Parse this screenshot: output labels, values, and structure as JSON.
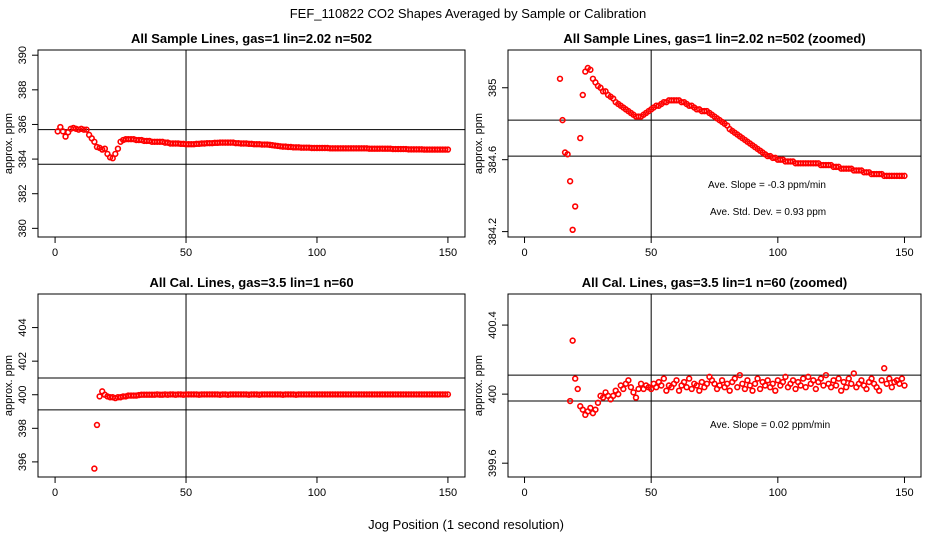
{
  "page": {
    "title": "FEF_110822  CO2 Shapes Averaged by Sample or Calibration",
    "xlabel": "Jog Position (1 second resolution)"
  },
  "colors": {
    "points": "#ff0000",
    "lines": "#000000",
    "background": "#ffffff"
  },
  "chart_data": [
    {
      "type": "scatter",
      "title": "All Sample Lines, gas=1 lin=2.02 n=502",
      "ylabel": "approx. ppm",
      "xlim": [
        0,
        150
      ],
      "ylim": [
        379.5,
        390.3
      ],
      "xticks": [
        0,
        50,
        100,
        150
      ],
      "yticks": [
        380,
        382,
        384,
        386,
        388,
        390
      ],
      "hlines": [
        385.7,
        383.7
      ],
      "vlines": [
        50
      ],
      "notes": [],
      "x": [
        1,
        2,
        3,
        4,
        5,
        6,
        7,
        8,
        9,
        10,
        11,
        12,
        13,
        14,
        15,
        16,
        17,
        18,
        19,
        20,
        21,
        22,
        23,
        24,
        25,
        26,
        27,
        28,
        29,
        30,
        31,
        32,
        33,
        34,
        35,
        36,
        37,
        38,
        39,
        40,
        41,
        42,
        43,
        44,
        45,
        46,
        47,
        48,
        49,
        50,
        51,
        52,
        53,
        54,
        55,
        56,
        57,
        58,
        59,
        60,
        61,
        62,
        63,
        64,
        65,
        66,
        67,
        68,
        69,
        70,
        71,
        72,
        73,
        74,
        75,
        76,
        77,
        78,
        79,
        80,
        81,
        82,
        83,
        84,
        85,
        86,
        87,
        88,
        89,
        90,
        91,
        92,
        93,
        94,
        95,
        96,
        97,
        98,
        99,
        100,
        101,
        102,
        103,
        104,
        105,
        106,
        107,
        108,
        109,
        110,
        111,
        112,
        113,
        114,
        115,
        116,
        117,
        118,
        119,
        120,
        121,
        122,
        123,
        124,
        125,
        126,
        127,
        128,
        129,
        130,
        131,
        132,
        133,
        134,
        135,
        136,
        137,
        138,
        139,
        140,
        141,
        142,
        143,
        144,
        145,
        146,
        147,
        148,
        149,
        150
      ],
      "y": [
        385.6,
        385.85,
        385.6,
        385.3,
        385.55,
        385.75,
        385.8,
        385.75,
        385.7,
        385.75,
        385.7,
        385.7,
        385.4,
        385.2,
        385.0,
        384.7,
        384.65,
        384.55,
        384.6,
        384.3,
        384.1,
        384.05,
        384.3,
        384.6,
        385.0,
        385.1,
        385.15,
        385.15,
        385.15,
        385.15,
        385.1,
        385.1,
        385.1,
        385.05,
        385.05,
        385.05,
        385.0,
        385.0,
        385.0,
        385.0,
        385.0,
        384.95,
        384.95,
        384.9,
        384.9,
        384.9,
        384.9,
        384.88,
        384.88,
        384.86,
        384.86,
        384.86,
        384.86,
        384.88,
        384.88,
        384.9,
        384.9,
        384.92,
        384.92,
        384.92,
        384.94,
        384.94,
        384.95,
        384.95,
        384.95,
        384.95,
        384.95,
        384.95,
        384.92,
        384.92,
        384.9,
        384.9,
        384.9,
        384.88,
        384.88,
        384.86,
        384.86,
        384.86,
        384.84,
        384.84,
        384.84,
        384.82,
        384.8,
        384.78,
        384.76,
        384.74,
        384.72,
        384.72,
        384.7,
        384.7,
        384.68,
        384.68,
        384.68,
        384.66,
        384.66,
        384.66,
        384.66,
        384.64,
        384.64,
        384.64,
        384.64,
        384.64,
        384.64,
        384.64,
        384.62,
        384.62,
        384.62,
        384.62,
        384.62,
        384.62,
        384.62,
        384.62,
        384.62,
        384.62,
        384.62,
        384.62,
        384.62,
        384.62,
        384.62,
        384.6,
        384.6,
        384.6,
        384.6,
        384.6,
        384.6,
        384.6,
        384.6,
        384.6,
        384.58,
        384.58,
        384.58,
        384.58,
        384.58,
        384.58,
        384.56,
        384.56,
        384.56,
        384.56,
        384.56,
        384.56,
        384.55,
        384.55,
        384.55,
        384.55,
        384.55,
        384.55,
        384.55,
        384.55,
        384.55,
        384.55
      ]
    },
    {
      "type": "scatter",
      "title": "All Sample Lines, gas=1 lin=2.02 n=502 (zoomed)",
      "ylabel": "approx. ppm",
      "xlim": [
        0,
        150
      ],
      "ylim": [
        384.17,
        385.21
      ],
      "xticks": [
        0,
        50,
        100,
        150
      ],
      "yticks": [
        384.2,
        384.6,
        385.0
      ],
      "hlines": [
        384.82,
        384.62
      ],
      "vlines": [
        50
      ],
      "notes": [
        "Ave. Slope =  -0.3  ppm/min",
        "Ave. Std. Dev. =  0.93  ppm"
      ],
      "x": [
        14,
        15,
        16,
        17,
        18,
        19,
        20,
        22,
        23,
        24,
        25,
        26,
        27,
        28,
        29,
        30,
        31,
        32,
        33,
        34,
        35,
        36,
        37,
        38,
        39,
        40,
        41,
        42,
        43,
        44,
        45,
        46,
        47,
        48,
        49,
        50,
        51,
        52,
        53,
        54,
        55,
        56,
        57,
        58,
        59,
        60,
        61,
        62,
        63,
        64,
        65,
        66,
        67,
        68,
        69,
        70,
        71,
        72,
        73,
        74,
        75,
        76,
        77,
        78,
        79,
        80,
        81,
        82,
        83,
        84,
        85,
        86,
        87,
        88,
        89,
        90,
        91,
        92,
        93,
        94,
        95,
        96,
        97,
        98,
        99,
        100,
        101,
        102,
        103,
        104,
        105,
        106,
        107,
        108,
        109,
        110,
        111,
        112,
        113,
        114,
        115,
        116,
        117,
        118,
        119,
        120,
        121,
        122,
        123,
        124,
        125,
        126,
        127,
        128,
        129,
        130,
        131,
        132,
        133,
        134,
        135,
        136,
        137,
        138,
        139,
        140,
        141,
        142,
        143,
        144,
        145,
        146,
        147,
        148,
        149,
        150
      ],
      "y": [
        385.05,
        384.82,
        384.64,
        384.63,
        384.48,
        384.21,
        384.34,
        384.72,
        384.96,
        385.09,
        385.11,
        385.1,
        385.05,
        385.03,
        385.01,
        385.0,
        384.98,
        384.98,
        384.96,
        384.95,
        384.94,
        384.92,
        384.91,
        384.9,
        384.89,
        384.88,
        384.87,
        384.86,
        384.85,
        384.84,
        384.84,
        384.84,
        384.85,
        384.86,
        384.87,
        384.88,
        384.89,
        384.9,
        384.9,
        384.91,
        384.92,
        384.92,
        384.93,
        384.93,
        384.93,
        384.93,
        384.93,
        384.92,
        384.92,
        384.91,
        384.9,
        384.9,
        384.89,
        384.88,
        384.88,
        384.87,
        384.87,
        384.87,
        384.86,
        384.85,
        384.84,
        384.83,
        384.82,
        384.81,
        384.8,
        384.79,
        384.77,
        384.76,
        384.75,
        384.74,
        384.73,
        384.72,
        384.71,
        384.7,
        384.69,
        384.68,
        384.67,
        384.66,
        384.65,
        384.64,
        384.63,
        384.62,
        384.62,
        384.61,
        384.61,
        384.6,
        384.6,
        384.6,
        384.59,
        384.59,
        384.59,
        384.59,
        384.58,
        384.58,
        384.58,
        384.58,
        384.58,
        384.58,
        384.58,
        384.58,
        384.58,
        384.58,
        384.57,
        384.57,
        384.57,
        384.57,
        384.57,
        384.56,
        384.56,
        384.56,
        384.55,
        384.55,
        384.55,
        384.55,
        384.55,
        384.54,
        384.54,
        384.54,
        384.54,
        384.53,
        384.53,
        384.53,
        384.52,
        384.52,
        384.52,
        384.52,
        384.52,
        384.51,
        384.51,
        384.51,
        384.51,
        384.51,
        384.51,
        384.51,
        384.51,
        384.51
      ]
    },
    {
      "type": "scatter",
      "title": "All Cal. Lines, gas=3.5 lin=1 n=60",
      "ylabel": "approx. ppm",
      "xlim": [
        0,
        150
      ],
      "ylim": [
        395.1,
        406
      ],
      "xticks": [
        0,
        50,
        100,
        150
      ],
      "yticks": [
        396,
        398,
        400,
        402,
        404
      ],
      "hlines": [
        401.0,
        399.1
      ],
      "vlines": [
        50
      ],
      "notes": [],
      "x": [
        15,
        16,
        17,
        18,
        19,
        20,
        21,
        22,
        23,
        24,
        25,
        26,
        27,
        28,
        29,
        30,
        31,
        32,
        33,
        34,
        35,
        36,
        37,
        38,
        39,
        40,
        41,
        42,
        43,
        44,
        45,
        46,
        47,
        48,
        49,
        50,
        51,
        52,
        53,
        54,
        55,
        56,
        57,
        58,
        59,
        60,
        61,
        62,
        63,
        64,
        65,
        66,
        67,
        68,
        69,
        70,
        71,
        72,
        73,
        74,
        75,
        76,
        77,
        78,
        79,
        80,
        81,
        82,
        83,
        84,
        85,
        86,
        87,
        88,
        89,
        90,
        91,
        92,
        93,
        94,
        95,
        96,
        97,
        98,
        99,
        100,
        101,
        102,
        103,
        104,
        105,
        106,
        107,
        108,
        109,
        110,
        111,
        112,
        113,
        114,
        115,
        116,
        117,
        118,
        119,
        120,
        121,
        122,
        123,
        124,
        125,
        126,
        127,
        128,
        129,
        130,
        131,
        132,
        133,
        134,
        135,
        136,
        137,
        138,
        139,
        140,
        141,
        142,
        143,
        144,
        145,
        146,
        147,
        148,
        149,
        150
      ],
      "y": [
        395.6,
        398.2,
        399.9,
        400.2,
        400.0,
        399.9,
        399.85,
        399.85,
        399.8,
        399.85,
        399.85,
        399.9,
        399.9,
        399.95,
        399.95,
        399.95,
        399.95,
        399.98,
        400.0,
        400.0,
        400.0,
        400.0,
        400.0,
        400.0,
        400.02,
        400.0,
        400.0,
        400.02,
        400.0,
        400.02,
        400.02,
        400.0,
        400.02,
        400.02,
        400.0,
        400.02,
        400.02,
        400.02,
        400.02,
        400.02,
        400.0,
        400.02,
        400.02,
        400.02,
        400.02,
        400.02,
        400.02,
        400.02,
        400.0,
        400.02,
        400.02,
        400.0,
        400.02,
        400.02,
        400.02,
        400.02,
        400.02,
        400.02,
        400.02,
        400.0,
        400.02,
        400.02,
        400.02,
        400.0,
        400.02,
        400.02,
        400.02,
        400.02,
        400.02,
        400.02,
        400.02,
        400.02,
        400.0,
        400.02,
        400.02,
        400.02,
        400.02,
        400.0,
        400.02,
        400.02,
        400.02,
        400.02,
        400.02,
        400.02,
        400.02,
        400.02,
        400.02,
        400.02,
        400.02,
        400.02,
        400.02,
        400.02,
        400.02,
        400.02,
        400.02,
        400.02,
        400.02,
        400.02,
        400.02,
        400.02,
        400.02,
        400.02,
        400.02,
        400.02,
        400.02,
        400.02,
        400.02,
        400.02,
        400.02,
        400.02,
        400.02,
        400.02,
        400.02,
        400.02,
        400.02,
        400.02,
        400.02,
        400.02,
        400.02,
        400.02,
        400.02,
        400.02,
        400.02,
        400.02,
        400.02,
        400.02,
        400.02,
        400.02,
        400.02,
        400.02,
        400.02,
        400.02,
        400.02,
        400.02,
        400.02,
        400.02
      ]
    },
    {
      "type": "scatter",
      "title": "All Cal. Lines, gas=3.5 lin=1 n=60 (zoomed)",
      "ylabel": "approx. ppm",
      "xlim": [
        0,
        150
      ],
      "ylim": [
        399.52,
        400.58
      ],
      "xticks": [
        0,
        50,
        100,
        150
      ],
      "yticks": [
        399.6,
        400.0,
        400.4
      ],
      "hlines": [
        400.11,
        399.96
      ],
      "vlines": [
        50
      ],
      "notes": [
        "Ave. Slope =  0.02  ppm/min"
      ],
      "x": [
        18,
        19,
        20,
        21,
        22,
        23,
        24,
        25,
        26,
        27,
        28,
        29,
        30,
        31,
        32,
        33,
        34,
        35,
        36,
        37,
        38,
        39,
        40,
        41,
        42,
        43,
        44,
        45,
        46,
        47,
        48,
        49,
        50,
        51,
        52,
        53,
        54,
        55,
        56,
        57,
        58,
        59,
        60,
        61,
        62,
        63,
        64,
        65,
        66,
        67,
        68,
        69,
        70,
        71,
        72,
        73,
        74,
        75,
        76,
        77,
        78,
        79,
        80,
        81,
        82,
        83,
        84,
        85,
        86,
        87,
        88,
        89,
        90,
        91,
        92,
        93,
        94,
        95,
        96,
        97,
        98,
        99,
        100,
        101,
        102,
        103,
        104,
        105,
        106,
        107,
        108,
        109,
        110,
        111,
        112,
        113,
        114,
        115,
        116,
        117,
        118,
        119,
        120,
        121,
        122,
        123,
        124,
        125,
        126,
        127,
        128,
        129,
        130,
        131,
        132,
        133,
        134,
        135,
        136,
        137,
        138,
        139,
        140,
        141,
        142,
        143,
        144,
        145,
        146,
        147,
        148,
        149,
        150
      ],
      "y": [
        399.96,
        400.31,
        400.09,
        400.03,
        399.93,
        399.91,
        399.88,
        399.9,
        399.92,
        399.89,
        399.91,
        399.95,
        399.99,
        399.98,
        400.01,
        399.99,
        399.97,
        399.99,
        400.02,
        400.0,
        400.05,
        400.03,
        400.06,
        400.08,
        400.04,
        400.01,
        399.98,
        400.03,
        400.06,
        400.03,
        400.05,
        400.04,
        400.03,
        400.06,
        400.04,
        400.07,
        400.05,
        400.09,
        400.02,
        400.05,
        400.04,
        400.06,
        400.08,
        400.02,
        400.05,
        400.07,
        400.04,
        400.09,
        400.03,
        400.06,
        400.05,
        400.02,
        400.07,
        400.04,
        400.06,
        400.1,
        400.08,
        400.06,
        400.03,
        400.05,
        400.08,
        400.04,
        400.06,
        400.02,
        400.07,
        400.09,
        400.04,
        400.11,
        400.06,
        400.03,
        400.08,
        400.05,
        400.02,
        400.06,
        400.09,
        400.03,
        400.07,
        400.05,
        400.08,
        400.04,
        400.06,
        400.02,
        400.08,
        400.05,
        400.07,
        400.1,
        400.04,
        400.06,
        400.08,
        400.03,
        400.07,
        400.05,
        400.09,
        400.04,
        400.1,
        400.06,
        400.08,
        400.03,
        400.07,
        400.09,
        400.05,
        400.11,
        400.06,
        400.04,
        400.08,
        400.05,
        400.09,
        400.02,
        400.07,
        400.04,
        400.09,
        400.06,
        400.12,
        400.04,
        400.06,
        400.08,
        400.05,
        400.03,
        400.07,
        400.09,
        400.06,
        400.04,
        400.02,
        400.08,
        400.15,
        400.06,
        400.09,
        400.04,
        400.07,
        400.08,
        400.06,
        400.09,
        400.05
      ]
    }
  ]
}
